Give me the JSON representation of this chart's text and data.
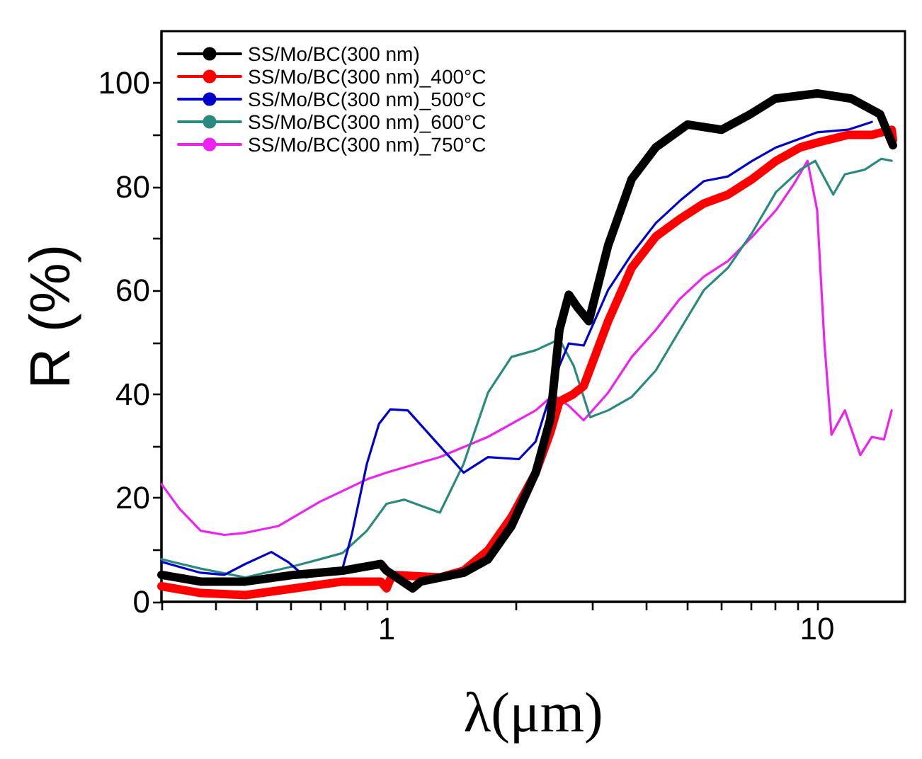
{
  "chart_data": {
    "type": "line",
    "xlabel": "λ(μm)",
    "ylabel": "R (%)",
    "log": "x",
    "legend": "top left",
    "grid": false,
    "marker": "none",
    "line_style": "solid",
    "xlim": [
      0.3,
      16
    ],
    "xticks": [
      {
        "value": 0.3,
        "label": null
      },
      {
        "value": 0.4,
        "label": null
      },
      {
        "value": 0.5,
        "label": null
      },
      {
        "value": 0.6,
        "label": null
      },
      {
        "value": 0.7,
        "label": null
      },
      {
        "value": 0.8,
        "label": null
      },
      {
        "value": 0.9,
        "label": null
      },
      1,
      {
        "value": 2,
        "label": null
      },
      {
        "value": 3,
        "label": null
      },
      {
        "value": 4,
        "label": null
      },
      {
        "value": 5,
        "label": null
      },
      {
        "value": 6,
        "label": null
      },
      {
        "value": 7,
        "label": null
      },
      {
        "value": 8,
        "label": null
      },
      {
        "value": 9,
        "label": null
      },
      10
    ],
    "ylim": [
      0,
      110
    ],
    "yticks": [
      0,
      {
        "value": 10,
        "label": null
      },
      20,
      {
        "value": 30,
        "label": null
      },
      40,
      {
        "value": 50,
        "label": null
      },
      60,
      {
        "value": 70,
        "label": null
      },
      80,
      {
        "value": 90,
        "label": null
      },
      100
    ],
    "series": [
      {
        "name": "SS/Mo/BC(300 nm)",
        "color": "#000000",
        "x": [
          0.3,
          0.37,
          0.47,
          0.61,
          0.79,
          0.97,
          1,
          1.15,
          1.2,
          1.51,
          1.72,
          1.95,
          2.22,
          2.4,
          2.52,
          2.65,
          2.78,
          2.95,
          3.27,
          3.71,
          4.22,
          5,
          6,
          7,
          8,
          10,
          12,
          14,
          15
        ],
        "values": [
          5.2,
          3.9,
          3.9,
          5.2,
          6,
          7.3,
          6,
          2.6,
          3.9,
          5.6,
          8.2,
          14.6,
          24.9,
          35.2,
          52.4,
          59.2,
          56.7,
          54.1,
          68.7,
          81.5,
          87.6,
          92,
          91,
          94,
          97,
          98,
          97,
          94,
          88
        ]
      },
      {
        "name": "SS/Mo/BC(300 nm)_400°C",
        "color": "#ff0000",
        "x": [
          0.3,
          0.37,
          0.47,
          0.61,
          0.79,
          0.97,
          1,
          1.03,
          1.33,
          1.51,
          1.72,
          1.95,
          2.22,
          2.4,
          2.52,
          2.7,
          2.87,
          3.27,
          3.71,
          4.22,
          4.8,
          5.46,
          6.21,
          7.07,
          8.03,
          9.14,
          10,
          11.8,
          13.4,
          14.9,
          15
        ],
        "values": [
          3,
          1.7,
          1.3,
          2.6,
          3.9,
          3.9,
          2.6,
          5.2,
          4.7,
          6,
          9.9,
          16.3,
          24.9,
          32.6,
          38.6,
          39.9,
          41.6,
          54.1,
          64.4,
          70.4,
          73.8,
          76.8,
          78.5,
          81.5,
          85,
          87.6,
          88.5,
          90,
          90,
          91,
          89
        ]
      },
      {
        "name": "SS/Mo/BC(300 nm)_500°C",
        "color": "#0000cc",
        "x": [
          0.3,
          0.37,
          0.42,
          0.47,
          0.54,
          0.59,
          0.65,
          0.79,
          0.83,
          0.9,
          0.96,
          1.02,
          1.12,
          1.33,
          1.51,
          1.72,
          2.03,
          2.22,
          2.52,
          2.65,
          2.87,
          3.27,
          3.71,
          4.22,
          4.8,
          5.46,
          6.21,
          7.07,
          8.03,
          10,
          11.8,
          13.4
        ],
        "values": [
          7.7,
          5.6,
          5.2,
          7.3,
          9.6,
          7.7,
          4.7,
          6.4,
          12.9,
          26.6,
          34.3,
          37.1,
          36.9,
          30,
          24.9,
          27.9,
          27.5,
          30.9,
          45.5,
          49.8,
          49.4,
          60.1,
          67,
          73,
          77.3,
          81.1,
          82,
          85,
          87.6,
          90.5,
          91,
          92.5
        ]
      },
      {
        "name": "SS/Mo/BC(300 nm)_600°C",
        "color": "#2a8a80",
        "x": [
          0.3,
          0.37,
          0.47,
          0.61,
          0.7,
          0.79,
          0.9,
          1,
          1.1,
          1.33,
          1.51,
          1.72,
          1.95,
          2.22,
          2.52,
          2.72,
          2.97,
          3.27,
          3.71,
          4.22,
          4.8,
          5.46,
          6.21,
          7.07,
          8.03,
          9.14,
          9.9,
          10.9,
          11.6,
          12.9,
          14.1,
          14.9
        ],
        "values": [
          8.2,
          6.4,
          4.7,
          6.9,
          8.2,
          9.4,
          13.7,
          18.9,
          19.7,
          17.2,
          26.6,
          40.3,
          47.2,
          48.5,
          50.6,
          45.5,
          35.6,
          36.9,
          39.5,
          44.6,
          52.4,
          60.1,
          64.4,
          71.2,
          79,
          83.3,
          85,
          78.5,
          82.4,
          83.3,
          85.4,
          85
        ]
      },
      {
        "name": "SS/Mo/BC(300 nm)_750°C",
        "color": "#ee22ee",
        "x": [
          0.3,
          0.33,
          0.37,
          0.42,
          0.47,
          0.56,
          0.7,
          0.9,
          1,
          1.33,
          1.72,
          2.22,
          2.44,
          2.65,
          2.87,
          3.27,
          3.71,
          4.22,
          4.8,
          5.46,
          6.21,
          7.07,
          8.03,
          8.86,
          9.5,
          10,
          10.4,
          10.8,
          11.6,
          12.6,
          13.4,
          14.3,
          14.9
        ],
        "values": [
          22.7,
          18,
          13.7,
          12.9,
          13.3,
          14.6,
          19.3,
          23.6,
          24.9,
          27.9,
          31.8,
          36.9,
          39.9,
          37.8,
          35,
          40.3,
          47.2,
          52.4,
          58.4,
          62.7,
          65.7,
          70.4,
          75.5,
          80.7,
          85,
          75.5,
          49.8,
          32.2,
          36.9,
          28.3,
          31.8,
          31.3,
          36.9
        ]
      }
    ]
  }
}
